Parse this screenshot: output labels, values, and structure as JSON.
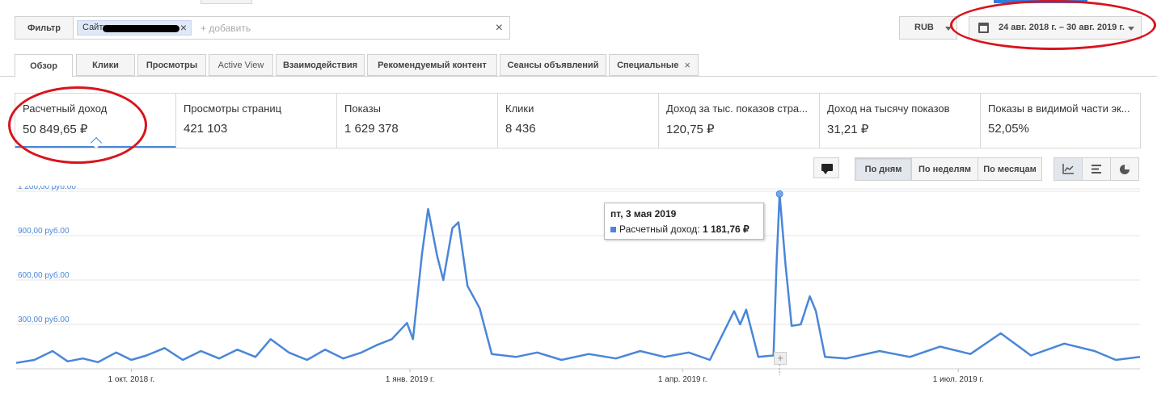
{
  "filter": {
    "button_label": "Фильтр",
    "chip_label": "Сайты",
    "placeholder": "+ добавить",
    "clear_icon": "close-icon"
  },
  "currency": {
    "label": "RUB"
  },
  "date_range": {
    "label": "24 авг. 2018 г. – 30 авг. 2019 г."
  },
  "tabs": [
    {
      "label": "Обзор",
      "active": true
    },
    {
      "label": "Клики"
    },
    {
      "label": "Просмотры"
    },
    {
      "label": "Active View"
    },
    {
      "label": "Взаимодействия"
    },
    {
      "label": "Рекомендуемый контент"
    },
    {
      "label": "Сеансы объявлений"
    },
    {
      "label": "Специальные",
      "close_glyph": "×"
    }
  ],
  "metrics": [
    {
      "label": "Расчетный доход",
      "value": "50 849,65 ₽",
      "selected": true
    },
    {
      "label": "Просмотры страниц",
      "value": "421 103"
    },
    {
      "label": "Показы",
      "value": "1 629 378"
    },
    {
      "label": "Клики",
      "value": "8 436"
    },
    {
      "label": "Доход за тыс. показов стра...",
      "value": "120,75 ₽"
    },
    {
      "label": "Доход на тысячу показов",
      "value": "31,21 ₽"
    },
    {
      "label": "Показы в видимой части эк...",
      "value": "52,05%"
    }
  ],
  "granularity": {
    "day": "По дням",
    "week": "По неделям",
    "month": "По месяцам",
    "selected": "day"
  },
  "chart_types": [
    "line-chart-icon",
    "bar-chart-icon",
    "pie-chart-icon"
  ],
  "tooltip": {
    "date": "пт, 3 мая 2019",
    "series": "Расчетный доход:",
    "value": "1 181,76 ₽"
  },
  "chart_data": {
    "type": "line",
    "series": [
      {
        "name": "Расчетный доход",
        "color": "#4a86d8"
      }
    ],
    "x_start": "2018-08-24",
    "x_end": "2019-08-30",
    "y_ticks": [
      "300,00 руб.00",
      "600,00 руб.00",
      "900,00 руб.00",
      "1 200,00 руб.00"
    ],
    "y_tick_values": [
      300,
      600,
      900,
      1200
    ],
    "ylim": [
      0,
      1200
    ],
    "x_tick_labels": [
      "1 окт. 2018 г.",
      "1 янв. 2019 г.",
      "1 апр. 2019 г.",
      "1 июл. 2019 г."
    ],
    "x_tick_dates": [
      "2018-10-01",
      "2019-01-01",
      "2019-04-01",
      "2019-07-01"
    ],
    "points": [
      [
        "2018-08-24",
        40
      ],
      [
        "2018-08-30",
        60
      ],
      [
        "2018-09-05",
        120
      ],
      [
        "2018-09-10",
        50
      ],
      [
        "2018-09-15",
        70
      ],
      [
        "2018-09-20",
        45
      ],
      [
        "2018-09-26",
        110
      ],
      [
        "2018-10-01",
        60
      ],
      [
        "2018-10-06",
        90
      ],
      [
        "2018-10-12",
        140
      ],
      [
        "2018-10-18",
        60
      ],
      [
        "2018-10-24",
        120
      ],
      [
        "2018-10-30",
        70
      ],
      [
        "2018-11-05",
        130
      ],
      [
        "2018-11-11",
        80
      ],
      [
        "2018-11-16",
        200
      ],
      [
        "2018-11-22",
        110
      ],
      [
        "2018-11-28",
        60
      ],
      [
        "2018-12-04",
        130
      ],
      [
        "2018-12-10",
        70
      ],
      [
        "2018-12-16",
        110
      ],
      [
        "2018-12-21",
        160
      ],
      [
        "2018-12-26",
        200
      ],
      [
        "2018-12-31",
        310
      ],
      [
        "2019-01-02",
        200
      ],
      [
        "2019-01-05",
        780
      ],
      [
        "2019-01-07",
        1080
      ],
      [
        "2019-01-10",
        760
      ],
      [
        "2019-01-12",
        600
      ],
      [
        "2019-01-15",
        950
      ],
      [
        "2019-01-17",
        990
      ],
      [
        "2019-01-20",
        560
      ],
      [
        "2019-01-24",
        410
      ],
      [
        "2019-01-28",
        100
      ],
      [
        "2019-02-05",
        80
      ],
      [
        "2019-02-12",
        110
      ],
      [
        "2019-02-20",
        60
      ],
      [
        "2019-03-01",
        100
      ],
      [
        "2019-03-10",
        70
      ],
      [
        "2019-03-18",
        120
      ],
      [
        "2019-03-26",
        80
      ],
      [
        "2019-04-03",
        110
      ],
      [
        "2019-04-10",
        60
      ],
      [
        "2019-04-18",
        390
      ],
      [
        "2019-04-20",
        300
      ],
      [
        "2019-04-22",
        400
      ],
      [
        "2019-04-26",
        80
      ],
      [
        "2019-05-01",
        90
      ],
      [
        "2019-05-02",
        700
      ],
      [
        "2019-05-03",
        1182
      ],
      [
        "2019-05-05",
        700
      ],
      [
        "2019-05-07",
        290
      ],
      [
        "2019-05-10",
        300
      ],
      [
        "2019-05-13",
        490
      ],
      [
        "2019-05-15",
        390
      ],
      [
        "2019-05-18",
        80
      ],
      [
        "2019-05-25",
        70
      ],
      [
        "2019-06-05",
        120
      ],
      [
        "2019-06-15",
        80
      ],
      [
        "2019-06-25",
        150
      ],
      [
        "2019-07-05",
        100
      ],
      [
        "2019-07-15",
        240
      ],
      [
        "2019-07-25",
        90
      ],
      [
        "2019-08-05",
        170
      ],
      [
        "2019-08-15",
        120
      ],
      [
        "2019-08-22",
        60
      ],
      [
        "2019-08-30",
        80
      ]
    ]
  }
}
